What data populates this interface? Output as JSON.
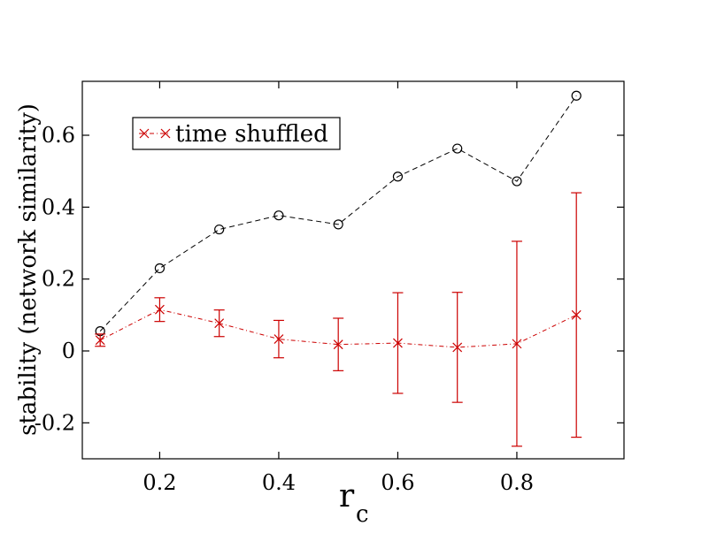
{
  "chart_data": {
    "type": "line",
    "title": "",
    "xlabel": "r",
    "xlabel_subscript": "c",
    "ylabel": "stability (network similarity)",
    "xlim": [
      0.07,
      0.98
    ],
    "ylim": [
      -0.3,
      0.75
    ],
    "grid": false,
    "legend_position": "top-left",
    "x_ticks": [
      {
        "value": 0.2,
        "label": "0.2"
      },
      {
        "value": 0.4,
        "label": "0.4"
      },
      {
        "value": 0.6,
        "label": "0.6"
      },
      {
        "value": 0.8,
        "label": "0.8"
      }
    ],
    "y_ticks": [
      {
        "value": -0.2,
        "label": "-0.2"
      },
      {
        "value": 0,
        "label": "0"
      },
      {
        "value": 0.2,
        "label": "0.2"
      },
      {
        "value": 0.4,
        "label": "0.4"
      },
      {
        "value": 0.6,
        "label": "0.6"
      }
    ],
    "x": [
      0.1,
      0.2,
      0.3,
      0.4,
      0.5,
      0.6,
      0.7,
      0.8,
      0.9
    ],
    "series": [
      {
        "name": "",
        "in_legend": false,
        "color": "#000000",
        "marker": "circle",
        "line_style": "dashed",
        "values": [
          0.055,
          0.23,
          0.338,
          0.377,
          0.352,
          0.485,
          0.563,
          0.472,
          0.71
        ]
      },
      {
        "name": "time shuffled",
        "in_legend": true,
        "color": "#cc0000",
        "marker": "x",
        "line_style": "dash-dot",
        "values": [
          0.03,
          0.115,
          0.077,
          0.033,
          0.018,
          0.022,
          0.01,
          0.02,
          0.1
        ],
        "error": [
          0.017,
          0.033,
          0.037,
          0.052,
          0.073,
          0.14,
          0.153,
          0.285,
          0.34
        ]
      }
    ]
  }
}
